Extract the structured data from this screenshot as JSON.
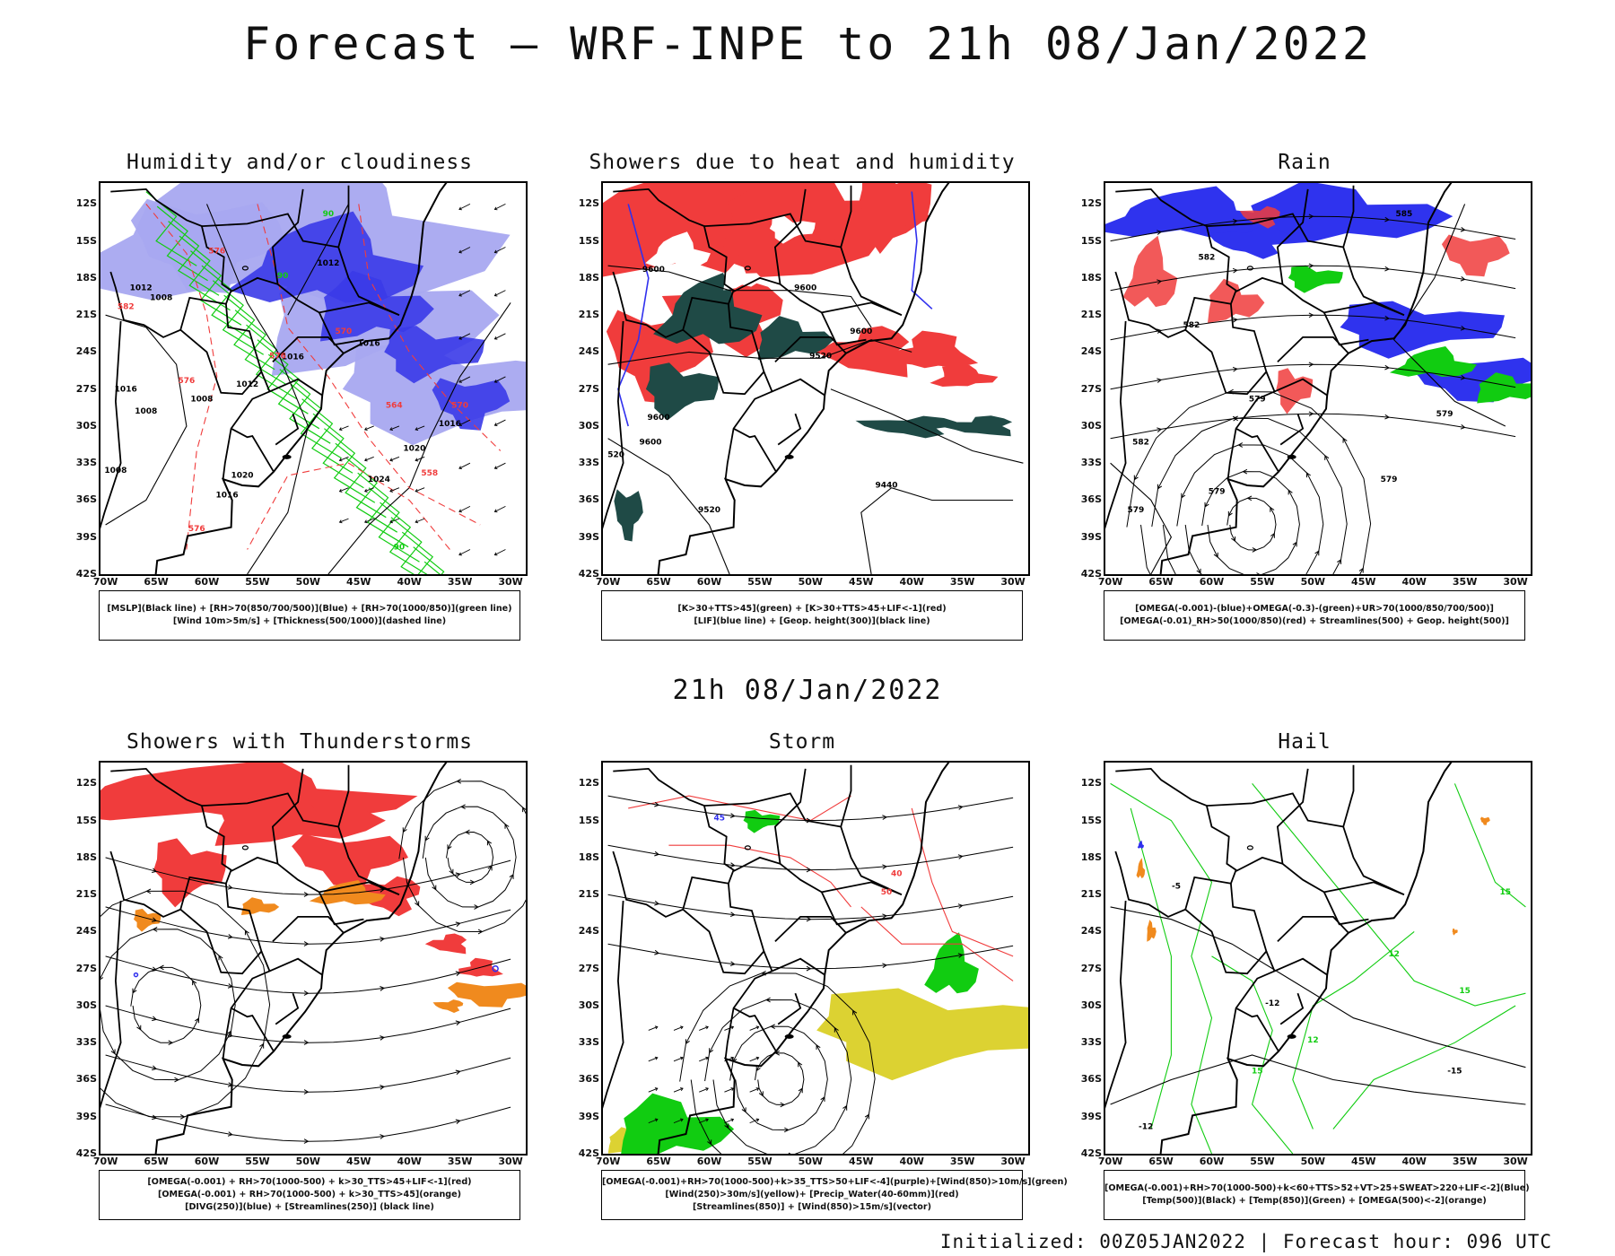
{
  "main_title": "Forecast – WRF-INPE to 21h 08/Jan/2022",
  "mid_title": "21h 08/Jan/2022",
  "footer": "Initialized: 00Z05JAN2022 | Forecast hour: 096 UTC",
  "lat_labels": [
    "12S",
    "15S",
    "18S",
    "21S",
    "24S",
    "27S",
    "30S",
    "33S",
    "36S",
    "39S",
    "42S"
  ],
  "lon_labels": [
    "70W",
    "65W",
    "60W",
    "55W",
    "50W",
    "45W",
    "40W",
    "35W",
    "30W"
  ],
  "colors": {
    "red": "#f03c3c",
    "blue": "#3030ee",
    "light_blue": "#a8a8f0",
    "green": "#11cc11",
    "dark_teal": "#1f4a46",
    "orange": "#f08a1e",
    "yellow": "#dcd232",
    "black": "#000000"
  },
  "panels": [
    {
      "id": "humidity",
      "title": "Humidity and/or cloudiness",
      "legend": [
        "[MSLP](Black line) + [RH>70(850/700/500)](Blue) + [RH>70(1000/850)](green line)",
        "[Wind 10m>5m/s] + [Thickness(500/1000)](dashed line)"
      ],
      "labels": [
        {
          "t": "1012",
          "lat": 17.0,
          "lon": 48.0,
          "c": "#000000"
        },
        {
          "t": "1016",
          "lat": 23.5,
          "lon": 44.0,
          "c": "#000000"
        },
        {
          "t": "1016",
          "lat": 24.6,
          "lon": 51.5,
          "c": "#000000"
        },
        {
          "t": "1012",
          "lat": 26.8,
          "lon": 56.0,
          "c": "#000000"
        },
        {
          "t": "1008",
          "lat": 28.0,
          "lon": 60.5,
          "c": "#000000"
        },
        {
          "t": "1020",
          "lat": 32.0,
          "lon": 39.5,
          "c": "#000000"
        },
        {
          "t": "1024",
          "lat": 34.5,
          "lon": 43.0,
          "c": "#000000"
        },
        {
          "t": "1020",
          "lat": 34.2,
          "lon": 56.5,
          "c": "#000000"
        },
        {
          "t": "1016",
          "lat": 35.8,
          "lon": 58.0,
          "c": "#000000"
        },
        {
          "t": "1012",
          "lat": 19.0,
          "lon": 66.5,
          "c": "#000000"
        },
        {
          "t": "1008",
          "lat": 19.8,
          "lon": 64.5,
          "c": "#000000"
        },
        {
          "t": "1016",
          "lat": 27.2,
          "lon": 68.0,
          "c": "#000000"
        },
        {
          "t": "1008",
          "lat": 29.0,
          "lon": 66.0,
          "c": "#000000"
        },
        {
          "t": "1008",
          "lat": 33.8,
          "lon": 69.0,
          "c": "#000000"
        },
        {
          "t": "1016",
          "lat": 30.0,
          "lon": 36.0,
          "c": "#000000"
        },
        {
          "t": "576",
          "lat": 16.0,
          "lon": 59.0,
          "c": "#f03c3c"
        },
        {
          "t": "576",
          "lat": 26.5,
          "lon": 62.0,
          "c": "#f03c3c"
        },
        {
          "t": "576",
          "lat": 24.5,
          "lon": 53.0,
          "c": "#f03c3c"
        },
        {
          "t": "570",
          "lat": 22.5,
          "lon": 46.5,
          "c": "#f03c3c"
        },
        {
          "t": "564",
          "lat": 28.5,
          "lon": 41.5,
          "c": "#f03c3c"
        },
        {
          "t": "558",
          "lat": 34.0,
          "lon": 38.0,
          "c": "#f03c3c"
        },
        {
          "t": "576",
          "lat": 38.5,
          "lon": 61.0,
          "c": "#f03c3c"
        },
        {
          "t": "582",
          "lat": 20.5,
          "lon": 68.0,
          "c": "#f03c3c"
        },
        {
          "t": "570",
          "lat": 28.5,
          "lon": 35.0,
          "c": "#f03c3c"
        },
        {
          "t": "90",
          "lat": 13.0,
          "lon": 48.0,
          "c": "#11cc11"
        },
        {
          "t": "90",
          "lat": 18.0,
          "lon": 52.5,
          "c": "#11cc11"
        },
        {
          "t": "90",
          "lat": 40.0,
          "lon": 41.0,
          "c": "#11cc11"
        }
      ]
    },
    {
      "id": "showers",
      "title": "Showers due to heat and humidity",
      "legend": [
        "[K>30+TTS>45](green) + [K>30+TTS>45+LIF<-1](red)",
        "[LIF](blue line) + [Geop. height(300)](black line)"
      ],
      "labels": [
        {
          "t": "9600",
          "lat": 17.5,
          "lon": 65.5,
          "c": "#000000"
        },
        {
          "t": "9600",
          "lat": 19.0,
          "lon": 50.5,
          "c": "#000000"
        },
        {
          "t": "9600",
          "lat": 22.5,
          "lon": 45.0,
          "c": "#000000"
        },
        {
          "t": "9520",
          "lat": 24.5,
          "lon": 49.0,
          "c": "#000000"
        },
        {
          "t": "9600",
          "lat": 29.5,
          "lon": 65.0,
          "c": "#000000"
        },
        {
          "t": "9600",
          "lat": 31.5,
          "lon": 65.8,
          "c": "#000000"
        },
        {
          "t": "9440",
          "lat": 35.0,
          "lon": 42.5,
          "c": "#000000"
        },
        {
          "t": "9520",
          "lat": 37.0,
          "lon": 60.0,
          "c": "#000000"
        },
        {
          "t": "520",
          "lat": 32.5,
          "lon": 69.2,
          "c": "#000000"
        }
      ]
    },
    {
      "id": "rain",
      "title": "Rain",
      "legend": [
        "[OMEGA(-0.001)-(blue)+OMEGA(-0.3)-(green)+UR>70(1000/850/700/500)]",
        "[OMEGA(-0.01)_RH>50(1000/850)(red) + Streamlines(500) + Geop. height(500)]"
      ],
      "labels": [
        {
          "t": "585",
          "lat": 13.0,
          "lon": 41.0,
          "c": "#000000"
        },
        {
          "t": "582",
          "lat": 16.5,
          "lon": 60.5,
          "c": "#000000"
        },
        {
          "t": "582",
          "lat": 22.0,
          "lon": 62.0,
          "c": "#000000"
        },
        {
          "t": "579",
          "lat": 28.0,
          "lon": 55.5,
          "c": "#000000"
        },
        {
          "t": "579",
          "lat": 29.2,
          "lon": 37.0,
          "c": "#000000"
        },
        {
          "t": "582",
          "lat": 31.5,
          "lon": 67.0,
          "c": "#000000"
        },
        {
          "t": "579",
          "lat": 35.5,
          "lon": 59.5,
          "c": "#000000"
        },
        {
          "t": "579",
          "lat": 37.0,
          "lon": 67.5,
          "c": "#000000"
        },
        {
          "t": "579",
          "lat": 34.5,
          "lon": 42.5,
          "c": "#000000"
        }
      ]
    },
    {
      "id": "thunder",
      "title": "Showers with Thunderstorms",
      "legend": [
        "[OMEGA(-0.001) + RH>70(1000-500) + k>30_TTS>45+LIF<-1](red)",
        "[OMEGA(-0.001) + RH>70(1000-500) + k>30_TTS>45](orange)",
        "[DIVG(250)](blue) + [Streamlines(250)] (black line)"
      ],
      "labels": []
    },
    {
      "id": "storm",
      "title": "Storm",
      "legend": [
        "[OMEGA(-0.001)+RH>70(1000-500)+k>35_TTS>50+LIF<-4](purple)+[Wind(850)>10m/s](green)",
        "[Wind(250)>30m/s](yellow)+ [Precip_Water(40-60mm)](red)",
        "[Streamlines(850)] + [Wind(850)>15m/s](vector)"
      ],
      "labels": [
        {
          "t": "40",
          "lat": 19.5,
          "lon": 41.5,
          "c": "#f03c3c"
        },
        {
          "t": "50",
          "lat": 21.0,
          "lon": 42.5,
          "c": "#f03c3c"
        },
        {
          "t": "45",
          "lat": 15.0,
          "lon": 59.0,
          "c": "#3030ee"
        }
      ]
    },
    {
      "id": "hail",
      "title": "Hail",
      "legend": [
        "[OMEGA(-0.001)+RH>70(1000-500)+k<60+TTS>52+VT>25+SWEAT>220+LIF<-2](Blue)",
        "[Temp(500)](Black) + [Temp(850)](Green) + [OMEGA(500)<-2](orange)"
      ],
      "labels": [
        {
          "t": "-5",
          "lat": 20.5,
          "lon": 63.5,
          "c": "#000000"
        },
        {
          "t": "-12",
          "lat": 30.0,
          "lon": 54.0,
          "c": "#000000"
        },
        {
          "t": "-15",
          "lat": 35.5,
          "lon": 36.0,
          "c": "#000000"
        },
        {
          "t": "-12",
          "lat": 40.0,
          "lon": 66.5,
          "c": "#000000"
        },
        {
          "t": "15",
          "lat": 21.0,
          "lon": 31.0,
          "c": "#11cc11"
        },
        {
          "t": "12",
          "lat": 26.0,
          "lon": 42.0,
          "c": "#11cc11"
        },
        {
          "t": "15",
          "lat": 29.0,
          "lon": 35.0,
          "c": "#11cc11"
        },
        {
          "t": "12",
          "lat": 33.0,
          "lon": 50.0,
          "c": "#11cc11"
        },
        {
          "t": "15",
          "lat": 35.5,
          "lon": 55.5,
          "c": "#11cc11"
        }
      ]
    }
  ]
}
